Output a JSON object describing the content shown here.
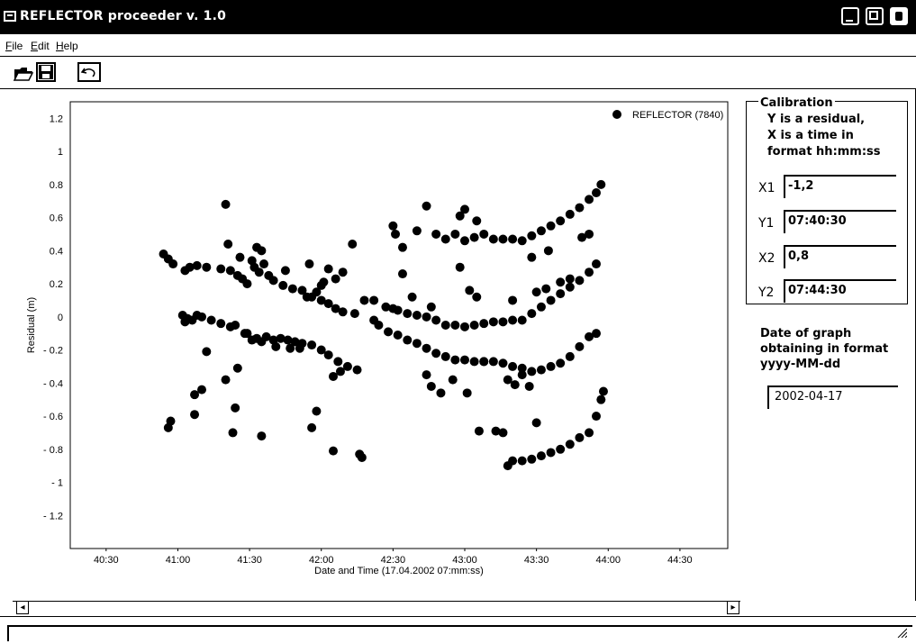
{
  "window": {
    "title": "REFLECTOR proceeder v. 1.0",
    "buttons": [
      "minimize-icon",
      "maximize-icon",
      "close-icon"
    ]
  },
  "menu": {
    "items": [
      {
        "label": "File"
      },
      {
        "label": "Edit"
      },
      {
        "label": "Help"
      }
    ]
  },
  "toolbar": {
    "buttons": [
      "open-folder-icon",
      "save-icon",
      "undo-icon"
    ]
  },
  "chart_data": {
    "type": "scatter",
    "xlabel": "Date and Time (17.04.2002 07:mm:ss)",
    "ylabel": "Residual (m)",
    "ylim": [
      -1.4,
      1.3
    ],
    "x_ticks": [
      "40:30",
      "41:00",
      "41:30",
      "42:00",
      "42:30",
      "43:00",
      "43:30",
      "44:00",
      "44:30"
    ],
    "y_ticks": [
      "1.2",
      "1",
      "0.8",
      "0.6",
      "0.4",
      "0.2",
      "0",
      "- 0.2",
      "- 0.4",
      "- 0.6",
      "- 0.8",
      "- 1",
      "- 1.2"
    ],
    "legend": "REFLECTOR (7840)",
    "legend_position": "top-right",
    "grid": false,
    "series": [
      {
        "name": "REFLECTOR (7840)",
        "points": [
          [
            "07:40:54",
            0.38
          ],
          [
            "07:40:56",
            0.35
          ],
          [
            "07:40:58",
            0.32
          ],
          [
            "07:41:03",
            0.28
          ],
          [
            "07:41:05",
            0.3
          ],
          [
            "07:41:08",
            0.31
          ],
          [
            "07:41:12",
            0.3
          ],
          [
            "07:41:18",
            0.29
          ],
          [
            "07:41:22",
            0.28
          ],
          [
            "07:41:25",
            0.25
          ],
          [
            "07:41:27",
            0.23
          ],
          [
            "07:41:29",
            0.2
          ],
          [
            "07:41:32",
            0.3
          ],
          [
            "07:41:34",
            0.27
          ],
          [
            "07:41:36",
            0.32
          ],
          [
            "07:41:38",
            0.25
          ],
          [
            "07:41:40",
            0.22
          ],
          [
            "07:41:44",
            0.19
          ],
          [
            "07:41:48",
            0.17
          ],
          [
            "07:41:52",
            0.16
          ],
          [
            "07:41:56",
            0.12
          ],
          [
            "07:42:00",
            0.1
          ],
          [
            "07:42:03",
            0.08
          ],
          [
            "07:42:06",
            0.05
          ],
          [
            "07:42:09",
            0.03
          ],
          [
            "07:42:14",
            0.02
          ],
          [
            "07:41:20",
            0.68
          ],
          [
            "07:41:21",
            0.44
          ],
          [
            "07:41:33",
            0.42
          ],
          [
            "07:41:35",
            0.4
          ],
          [
            "07:41:45",
            0.28
          ],
          [
            "07:41:55",
            0.32
          ],
          [
            "07:42:00",
            0.19
          ],
          [
            "07:42:03",
            0.29
          ],
          [
            "07:42:06",
            0.23
          ],
          [
            "07:42:09",
            0.27
          ],
          [
            "07:42:13",
            0.44
          ],
          [
            "07:41:26",
            0.36
          ],
          [
            "07:41:31",
            0.34
          ],
          [
            "07:41:54",
            0.12
          ],
          [
            "07:41:58",
            0.15
          ],
          [
            "07:42:01",
            0.21
          ],
          [
            "07:41:02",
            0.01
          ],
          [
            "07:41:04",
            -0.01
          ],
          [
            "07:41:06",
            -0.02
          ],
          [
            "07:41:08",
            0.01
          ],
          [
            "07:41:10",
            0.0
          ],
          [
            "07:41:14",
            -0.02
          ],
          [
            "07:41:18",
            -0.04
          ],
          [
            "07:41:22",
            -0.06
          ],
          [
            "07:41:24",
            -0.05
          ],
          [
            "07:41:28",
            -0.1
          ],
          [
            "07:41:31",
            -0.14
          ],
          [
            "07:41:33",
            -0.13
          ],
          [
            "07:41:35",
            -0.15
          ],
          [
            "07:41:40",
            -0.14
          ],
          [
            "07:41:43",
            -0.13
          ],
          [
            "07:41:46",
            -0.14
          ],
          [
            "07:41:49",
            -0.15
          ],
          [
            "07:41:52",
            -0.16
          ],
          [
            "07:41:56",
            -0.17
          ],
          [
            "07:42:00",
            -0.2
          ],
          [
            "07:42:03",
            -0.23
          ],
          [
            "07:42:07",
            -0.27
          ],
          [
            "07:42:11",
            -0.3
          ],
          [
            "07:42:15",
            -0.32
          ],
          [
            "07:41:03",
            -0.03
          ],
          [
            "07:41:12",
            -0.21
          ],
          [
            "07:41:20",
            -0.38
          ],
          [
            "07:41:25",
            -0.31
          ],
          [
            "07:41:29",
            -0.1
          ],
          [
            "07:41:37",
            -0.12
          ],
          [
            "07:41:41",
            -0.18
          ],
          [
            "07:41:47",
            -0.19
          ],
          [
            "07:41:51",
            -0.19
          ],
          [
            "07:42:05",
            -0.36
          ],
          [
            "07:42:08",
            -0.33
          ],
          [
            "07:40:56",
            -0.67
          ],
          [
            "07:40:57",
            -0.63
          ],
          [
            "07:41:07",
            -0.59
          ],
          [
            "07:41:07",
            -0.47
          ],
          [
            "07:41:10",
            -0.44
          ],
          [
            "07:41:23",
            -0.7
          ],
          [
            "07:41:24",
            -0.55
          ],
          [
            "07:41:35",
            -0.72
          ],
          [
            "07:41:56",
            -0.67
          ],
          [
            "07:41:58",
            -0.57
          ],
          [
            "07:42:05",
            -0.81
          ],
          [
            "07:42:16",
            -0.83
          ],
          [
            "07:42:17",
            -0.85
          ],
          [
            "07:42:18",
            0.1
          ],
          [
            "07:42:22",
            0.1
          ],
          [
            "07:42:27",
            0.06
          ],
          [
            "07:42:30",
            0.05
          ],
          [
            "07:42:32",
            0.04
          ],
          [
            "07:42:36",
            0.02
          ],
          [
            "07:42:40",
            0.01
          ],
          [
            "07:42:44",
            0.0
          ],
          [
            "07:42:48",
            -0.02
          ],
          [
            "07:42:52",
            -0.05
          ],
          [
            "07:42:56",
            -0.05
          ],
          [
            "07:43:00",
            -0.06
          ],
          [
            "07:43:04",
            -0.05
          ],
          [
            "07:43:08",
            -0.04
          ],
          [
            "07:43:12",
            -0.03
          ],
          [
            "07:43:16",
            -0.03
          ],
          [
            "07:43:20",
            -0.02
          ],
          [
            "07:43:24",
            -0.02
          ],
          [
            "07:43:28",
            0.02
          ],
          [
            "07:43:32",
            0.06
          ],
          [
            "07:43:36",
            0.1
          ],
          [
            "07:43:40",
            0.14
          ],
          [
            "07:43:44",
            0.18
          ],
          [
            "07:43:48",
            0.22
          ],
          [
            "07:43:52",
            0.27
          ],
          [
            "07:43:55",
            0.32
          ],
          [
            "07:42:22",
            -0.02
          ],
          [
            "07:42:24",
            -0.05
          ],
          [
            "07:42:28",
            -0.09
          ],
          [
            "07:42:32",
            -0.11
          ],
          [
            "07:42:36",
            -0.14
          ],
          [
            "07:42:40",
            -0.16
          ],
          [
            "07:42:44",
            -0.19
          ],
          [
            "07:42:48",
            -0.22
          ],
          [
            "07:42:52",
            -0.24
          ],
          [
            "07:42:56",
            -0.26
          ],
          [
            "07:43:00",
            -0.26
          ],
          [
            "07:43:04",
            -0.27
          ],
          [
            "07:43:08",
            -0.27
          ],
          [
            "07:43:12",
            -0.27
          ],
          [
            "07:43:16",
            -0.28
          ],
          [
            "07:43:20",
            -0.3
          ],
          [
            "07:43:24",
            -0.31
          ],
          [
            "07:43:28",
            -0.33
          ],
          [
            "07:43:32",
            -0.32
          ],
          [
            "07:43:36",
            -0.3
          ],
          [
            "07:43:40",
            -0.28
          ],
          [
            "07:43:44",
            -0.24
          ],
          [
            "07:43:48",
            -0.18
          ],
          [
            "07:43:52",
            -0.12
          ],
          [
            "07:43:55",
            -0.1
          ],
          [
            "07:42:30",
            0.55
          ],
          [
            "07:42:31",
            0.5
          ],
          [
            "07:42:34",
            0.42
          ],
          [
            "07:42:40",
            0.52
          ],
          [
            "07:42:48",
            0.5
          ],
          [
            "07:42:52",
            0.47
          ],
          [
            "07:42:56",
            0.5
          ],
          [
            "07:43:00",
            0.46
          ],
          [
            "07:43:04",
            0.48
          ],
          [
            "07:43:08",
            0.5
          ],
          [
            "07:43:12",
            0.47
          ],
          [
            "07:43:16",
            0.47
          ],
          [
            "07:43:20",
            0.47
          ],
          [
            "07:43:24",
            0.46
          ],
          [
            "07:43:28",
            0.49
          ],
          [
            "07:43:32",
            0.52
          ],
          [
            "07:43:36",
            0.55
          ],
          [
            "07:43:40",
            0.58
          ],
          [
            "07:43:44",
            0.62
          ],
          [
            "07:43:48",
            0.66
          ],
          [
            "07:43:52",
            0.71
          ],
          [
            "07:43:55",
            0.75
          ],
          [
            "07:43:57",
            0.8
          ],
          [
            "07:42:44",
            0.67
          ],
          [
            "07:42:58",
            0.61
          ],
          [
            "07:43:00",
            0.65
          ],
          [
            "07:43:05",
            0.58
          ],
          [
            "07:42:58",
            0.3
          ],
          [
            "07:43:28",
            0.36
          ],
          [
            "07:43:35",
            0.4
          ],
          [
            "07:43:49",
            0.48
          ],
          [
            "07:43:52",
            0.5
          ],
          [
            "07:42:34",
            0.26
          ],
          [
            "07:42:38",
            0.12
          ],
          [
            "07:42:46",
            0.06
          ],
          [
            "07:43:02",
            0.16
          ],
          [
            "07:43:05",
            0.12
          ],
          [
            "07:43:20",
            0.1
          ],
          [
            "07:43:30",
            0.15
          ],
          [
            "07:43:34",
            0.17
          ],
          [
            "07:43:40",
            0.21
          ],
          [
            "07:43:44",
            0.23
          ],
          [
            "07:42:44",
            -0.35
          ],
          [
            "07:42:46",
            -0.42
          ],
          [
            "07:42:50",
            -0.46
          ],
          [
            "07:42:55",
            -0.38
          ],
          [
            "07:43:01",
            -0.46
          ],
          [
            "07:43:08",
            -0.27
          ],
          [
            "07:43:18",
            -0.38
          ],
          [
            "07:43:21",
            -0.41
          ],
          [
            "07:43:24",
            -0.35
          ],
          [
            "07:43:27",
            -0.42
          ],
          [
            "07:43:06",
            -0.69
          ],
          [
            "07:43:13",
            -0.69
          ],
          [
            "07:43:16",
            -0.7
          ],
          [
            "07:43:18",
            -0.9
          ],
          [
            "07:43:20",
            -0.87
          ],
          [
            "07:43:24",
            -0.87
          ],
          [
            "07:43:28",
            -0.86
          ],
          [
            "07:43:32",
            -0.84
          ],
          [
            "07:43:36",
            -0.82
          ],
          [
            "07:43:40",
            -0.8
          ],
          [
            "07:43:44",
            -0.77
          ],
          [
            "07:43:48",
            -0.73
          ],
          [
            "07:43:52",
            -0.7
          ],
          [
            "07:43:55",
            -0.6
          ],
          [
            "07:43:57",
            -0.5
          ],
          [
            "07:43:58",
            -0.45
          ],
          [
            "07:43:30",
            -0.64
          ]
        ]
      }
    ]
  },
  "calibration": {
    "title": "Calibration",
    "description": [
      "Y is a residual,",
      "X is a time in",
      "format hh:mm:ss"
    ],
    "fields": [
      {
        "label": "X1",
        "value": "-1,2"
      },
      {
        "label": "Y1",
        "value": "07:40:30"
      },
      {
        "label": "X2",
        "value": "0,8"
      },
      {
        "label": "Y2",
        "value": "07:44:30"
      }
    ]
  },
  "date_section": {
    "label": [
      "Date of graph",
      "obtaining in format",
      "yyyy-MM-dd"
    ],
    "value": "2002-04-17"
  }
}
